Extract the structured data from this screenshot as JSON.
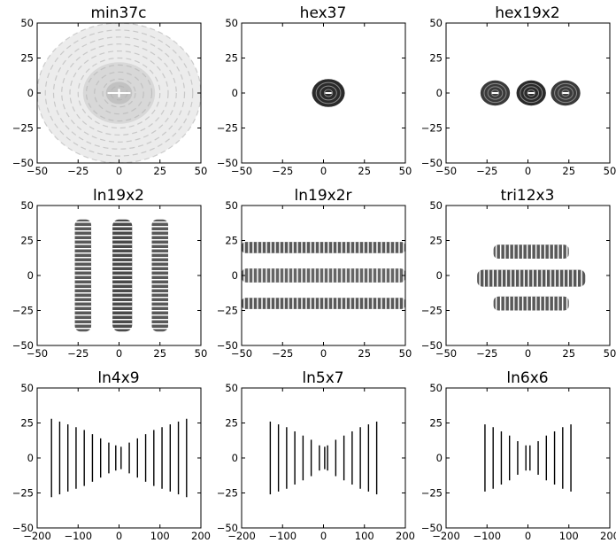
{
  "chart_data": [
    {
      "type": "heatmap",
      "title": "min37c",
      "pattern": "circular",
      "xlim": [
        -50,
        50
      ],
      "ylim": [
        -50,
        50
      ],
      "xticks": [
        "−50",
        "−25",
        "0",
        "25",
        "50"
      ],
      "yticks": [
        "50",
        "25",
        "0",
        "−25",
        "−50"
      ],
      "xtick_values": [
        -50,
        -25,
        0,
        25,
        50
      ],
      "ytick_values": [
        50,
        25,
        0,
        -25,
        -50
      ],
      "blobs": [
        {
          "x": 0,
          "y": 0,
          "r": 50,
          "shade": "#c8c8c8"
        },
        {
          "x": 0,
          "y": 0,
          "r": 22,
          "shade": "#b4b4b4"
        },
        {
          "x": 0,
          "y": 0,
          "r": 8,
          "shade": "#9a9a9a"
        }
      ]
    },
    {
      "type": "heatmap",
      "title": "hex37",
      "pattern": "blobs",
      "xlim": [
        -50,
        50
      ],
      "ylim": [
        -50,
        50
      ],
      "xticks": [
        "−50",
        "−25",
        "0",
        "25",
        "50"
      ],
      "yticks": [
        "50",
        "25",
        "0",
        "−25",
        "−50"
      ],
      "xtick_values": [
        -50,
        -25,
        0,
        25,
        50
      ],
      "ytick_values": [
        50,
        25,
        0,
        -25,
        -50
      ],
      "blobs": [
        {
          "x": 3,
          "y": 0,
          "r": 10,
          "shade": "#2a2a2a"
        }
      ]
    },
    {
      "type": "heatmap",
      "title": "hex19x2",
      "pattern": "blobs",
      "xlim": [
        -50,
        50
      ],
      "ylim": [
        -50,
        50
      ],
      "xticks": [
        "−50",
        "−25",
        "0",
        "25",
        "50"
      ],
      "yticks": [
        "50",
        "25",
        "0",
        "−25",
        "−50"
      ],
      "xtick_values": [
        -50,
        -25,
        0,
        25,
        50
      ],
      "ytick_values": [
        50,
        25,
        0,
        -25,
        -50
      ],
      "blobs": [
        {
          "x": -20,
          "y": 0,
          "r": 9,
          "shade": "#3a3a3a"
        },
        {
          "x": 2,
          "y": 0,
          "r": 9,
          "shade": "#2a2a2a"
        },
        {
          "x": 23,
          "y": 0,
          "r": 9,
          "shade": "#3a3a3a"
        }
      ]
    },
    {
      "type": "heatmap",
      "title": "ln19x2",
      "pattern": "vertical-bands",
      "xlim": [
        -50,
        50
      ],
      "ylim": [
        -50,
        50
      ],
      "xticks": [
        "−50",
        "−25",
        "0",
        "25",
        "50"
      ],
      "yticks": [
        "50",
        "25",
        "0",
        "−25",
        "−50"
      ],
      "xtick_values": [
        -50,
        -25,
        0,
        25,
        50
      ],
      "ytick_values": [
        50,
        25,
        0,
        -25,
        -50
      ],
      "blobs": [
        {
          "x": -22,
          "y": 0,
          "w": 10,
          "h": 80,
          "shade": "#3c3c3c"
        },
        {
          "x": 2,
          "y": 0,
          "w": 12,
          "h": 80,
          "shade": "#2a2a2a"
        },
        {
          "x": 25,
          "y": 0,
          "w": 10,
          "h": 80,
          "shade": "#3c3c3c"
        }
      ]
    },
    {
      "type": "heatmap",
      "title": "ln19x2r",
      "pattern": "horizontal-bands",
      "xlim": [
        -50,
        50
      ],
      "ylim": [
        -50,
        50
      ],
      "xticks": [
        "−50",
        "−25",
        "0",
        "25",
        "50"
      ],
      "yticks": [
        "50",
        "25",
        "0",
        "−25",
        "−50"
      ],
      "xtick_values": [
        -50,
        -25,
        0,
        25,
        50
      ],
      "ytick_values": [
        50,
        25,
        0,
        -25,
        -50
      ],
      "blobs": [
        {
          "x": 0,
          "y": 20,
          "w": 100,
          "h": 8,
          "shade": "#3c3c3c"
        },
        {
          "x": 0,
          "y": 0,
          "w": 100,
          "h": 10,
          "shade": "#4a4a4a"
        },
        {
          "x": 0,
          "y": -20,
          "w": 100,
          "h": 8,
          "shade": "#3c3c3c"
        }
      ]
    },
    {
      "type": "heatmap",
      "title": "tri12x3",
      "pattern": "horizontal-bands",
      "xlim": [
        -50,
        50
      ],
      "ylim": [
        -50,
        50
      ],
      "xticks": [
        "−50",
        "−25",
        "0",
        "25",
        "50"
      ],
      "yticks": [
        "50",
        "25",
        "0",
        "−25",
        "−50"
      ],
      "xtick_values": [
        -50,
        -25,
        0,
        25,
        50
      ],
      "ytick_values": [
        50,
        25,
        0,
        -25,
        -50
      ],
      "blobs": [
        {
          "x": 2,
          "y": 17,
          "w": 46,
          "h": 10,
          "shade": "#3c3c3c"
        },
        {
          "x": 2,
          "y": -2,
          "w": 66,
          "h": 12,
          "shade": "#3a3a3a"
        },
        {
          "x": 2,
          "y": -20,
          "w": 46,
          "h": 10,
          "shade": "#3c3c3c"
        }
      ]
    },
    {
      "type": "scatter",
      "title": "ln4x9",
      "pattern": "vertical-lines",
      "xlim": [
        -200,
        200
      ],
      "ylim": [
        -50,
        50
      ],
      "xticks": [
        "−200",
        "−100",
        "0",
        "100",
        "200"
      ],
      "yticks": [
        "50",
        "25",
        "0",
        "−25",
        "−50"
      ],
      "xtick_values": [
        -200,
        -100,
        0,
        100,
        200
      ],
      "ytick_values": [
        50,
        25,
        0,
        -25,
        -50
      ],
      "lines": [
        {
          "x": -165,
          "h": 28
        },
        {
          "x": -145,
          "h": 26
        },
        {
          "x": -125,
          "h": 24
        },
        {
          "x": -105,
          "h": 22
        },
        {
          "x": -85,
          "h": 20
        },
        {
          "x": -65,
          "h": 17
        },
        {
          "x": -45,
          "h": 14
        },
        {
          "x": -25,
          "h": 11
        },
        {
          "x": -8,
          "h": 9
        },
        {
          "x": 5,
          "h": 8
        },
        {
          "x": 25,
          "h": 11
        },
        {
          "x": 45,
          "h": 14
        },
        {
          "x": 65,
          "h": 17
        },
        {
          "x": 85,
          "h": 20
        },
        {
          "x": 105,
          "h": 22
        },
        {
          "x": 125,
          "h": 24
        },
        {
          "x": 145,
          "h": 26
        },
        {
          "x": 165,
          "h": 28
        }
      ]
    },
    {
      "type": "scatter",
      "title": "ln5x7",
      "pattern": "vertical-lines",
      "xlim": [
        -200,
        200
      ],
      "ylim": [
        -50,
        50
      ],
      "xticks": [
        "−200",
        "−100",
        "0",
        "100",
        "200"
      ],
      "yticks": [
        "50",
        "25",
        "0",
        "−25",
        "−50"
      ],
      "xtick_values": [
        -200,
        -100,
        0,
        100,
        200
      ],
      "ytick_values": [
        50,
        25,
        0,
        -25,
        -50
      ],
      "lines": [
        {
          "x": -130,
          "h": 26
        },
        {
          "x": -110,
          "h": 24
        },
        {
          "x": -90,
          "h": 22
        },
        {
          "x": -70,
          "h": 19
        },
        {
          "x": -50,
          "h": 16
        },
        {
          "x": -30,
          "h": 13
        },
        {
          "x": -10,
          "h": 9
        },
        {
          "x": 3,
          "h": 8
        },
        {
          "x": 10,
          "h": 9
        },
        {
          "x": 30,
          "h": 13
        },
        {
          "x": 50,
          "h": 16
        },
        {
          "x": 70,
          "h": 19
        },
        {
          "x": 90,
          "h": 22
        },
        {
          "x": 110,
          "h": 24
        },
        {
          "x": 130,
          "h": 26
        }
      ]
    },
    {
      "type": "scatter",
      "title": "ln6x6",
      "pattern": "vertical-lines",
      "xlim": [
        -200,
        200
      ],
      "ylim": [
        -50,
        50
      ],
      "xticks": [
        "−200",
        "−100",
        "0",
        "100",
        "200"
      ],
      "yticks": [
        "50",
        "25",
        "0",
        "−25",
        "−50"
      ],
      "xtick_values": [
        -200,
        -100,
        0,
        100,
        200
      ],
      "ytick_values": [
        50,
        25,
        0,
        -25,
        -50
      ],
      "lines": [
        {
          "x": -105,
          "h": 24
        },
        {
          "x": -85,
          "h": 22
        },
        {
          "x": -65,
          "h": 19
        },
        {
          "x": -45,
          "h": 16
        },
        {
          "x": -25,
          "h": 12
        },
        {
          "x": -5,
          "h": 9
        },
        {
          "x": 5,
          "h": 9
        },
        {
          "x": 25,
          "h": 12
        },
        {
          "x": 45,
          "h": 16
        },
        {
          "x": 65,
          "h": 19
        },
        {
          "x": 85,
          "h": 22
        },
        {
          "x": 105,
          "h": 24
        }
      ]
    }
  ]
}
